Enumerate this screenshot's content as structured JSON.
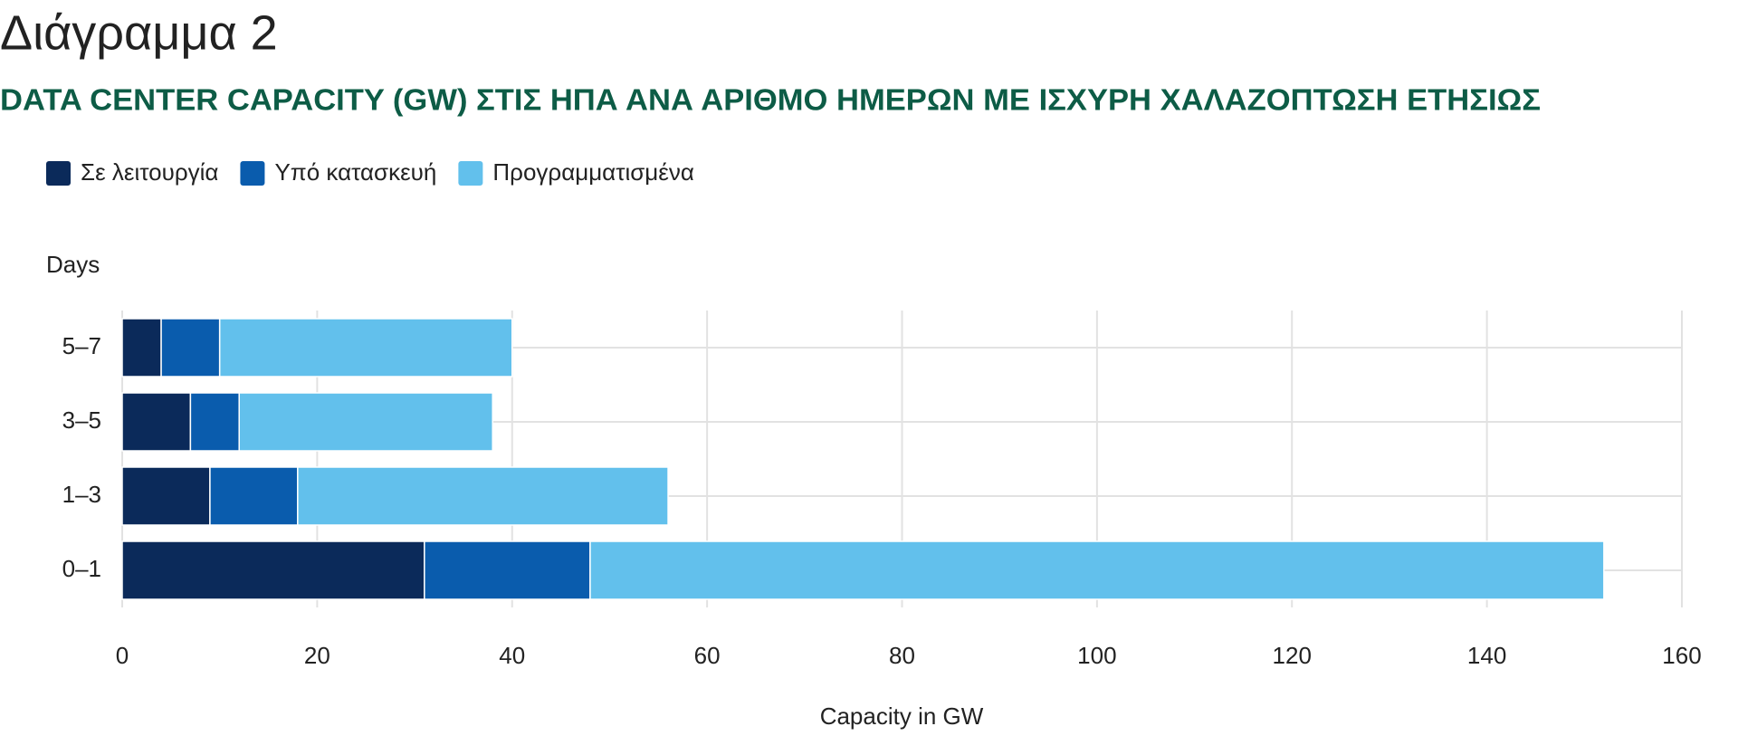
{
  "chart_data": {
    "type": "stacked-barh",
    "title": "Διάγραμμα 2",
    "subtitle": "DATA CENTER CAPACITY (GW) ΣΤΙΣ ΗΠΑ ΑΝΑ ΑΡΙΘΜΟ ΗΜΕΡΩΝ ΜΕ ΙΣΧΥΡΗ ΧΑΛΑΖΟΠΤΩΣΗ ΕΤΗΣΙΩΣ",
    "y_label": "Days",
    "x_label": "Capacity in GW",
    "categories": [
      "0–1",
      "1–3",
      "3–5",
      "5–7"
    ],
    "series": [
      {
        "name": "Σε λειτουργία",
        "color": "#0b2a5a",
        "values": [
          31,
          9,
          7,
          4
        ]
      },
      {
        "name": "Υπό κατασκευή",
        "color": "#0a5cad",
        "values": [
          17,
          9,
          5,
          6
        ]
      },
      {
        "name": "Προγραμματισμένα",
        "color": "#62c0ec",
        "values": [
          104,
          38,
          26,
          30
        ]
      }
    ],
    "xlim": [
      0,
      160
    ],
    "xticks": [
      0,
      20,
      40,
      60,
      80,
      100,
      120,
      140,
      160
    ],
    "grid": true,
    "legend": "top-left"
  }
}
